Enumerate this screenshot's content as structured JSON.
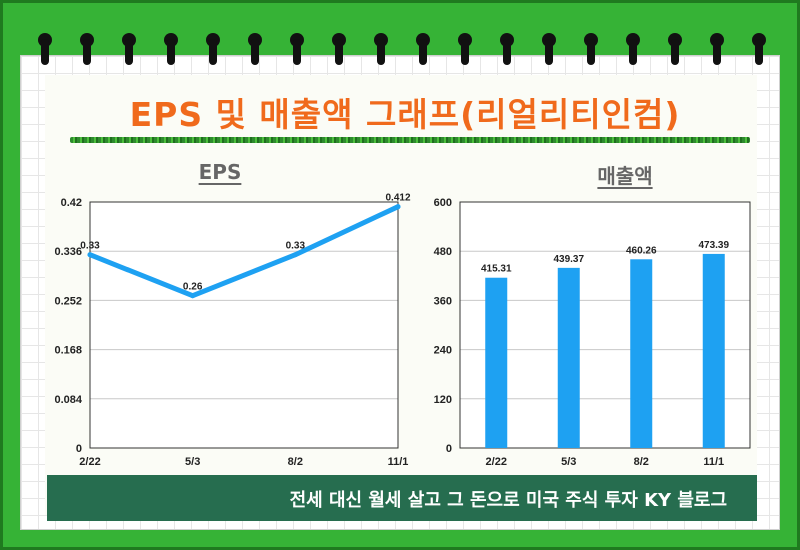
{
  "header": {
    "title": "EPS 및 매출액 그래프(리얼리티인컴)"
  },
  "footer": {
    "text": "전세 대신 월세 살고 그 돈으로 미국 주식 투자 KY 블로그"
  },
  "colors": {
    "frame": "#36b336",
    "title": "#f06a1c",
    "series": "#1ea1f2",
    "footer": "#266d4f"
  },
  "chart_data": [
    {
      "type": "line",
      "title": "EPS",
      "categories": [
        "2/22",
        "5/3",
        "8/2",
        "11/1"
      ],
      "values": [
        0.33,
        0.26,
        0.33,
        0.412
      ],
      "value_labels": [
        "0.33",
        "0.26",
        "0.33",
        "0.412"
      ],
      "ylim": [
        0,
        0.42
      ],
      "yticks": [
        "0",
        "0.084",
        "0.168",
        "0.252",
        "0.336",
        "0.42"
      ],
      "grid": true
    },
    {
      "type": "bar",
      "title": "매출액",
      "categories": [
        "2/22",
        "5/3",
        "8/2",
        "11/1"
      ],
      "values": [
        415.31,
        439.37,
        460.26,
        473.39
      ],
      "value_labels": [
        "415.31",
        "439.37",
        "460.26",
        "473.39"
      ],
      "ylim": [
        0,
        600
      ],
      "yticks": [
        "0",
        "120",
        "240",
        "360",
        "480",
        "600"
      ],
      "grid": true
    }
  ]
}
